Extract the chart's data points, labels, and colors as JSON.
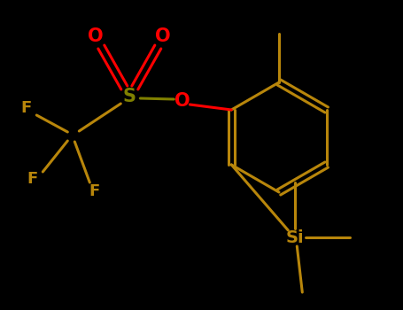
{
  "bg_color": "#000000",
  "bond_color": "#b8860b",
  "oxygen_color": "#ff0000",
  "fluorine_color": "#b8860b",
  "sulfur_color": "#808000",
  "silicon_color": "#b8860b",
  "line_width": 2.2,
  "fig_width": 4.55,
  "fig_height": 3.5,
  "dpi": 100,
  "xlim": [
    0,
    455
  ],
  "ylim": [
    0,
    350
  ]
}
